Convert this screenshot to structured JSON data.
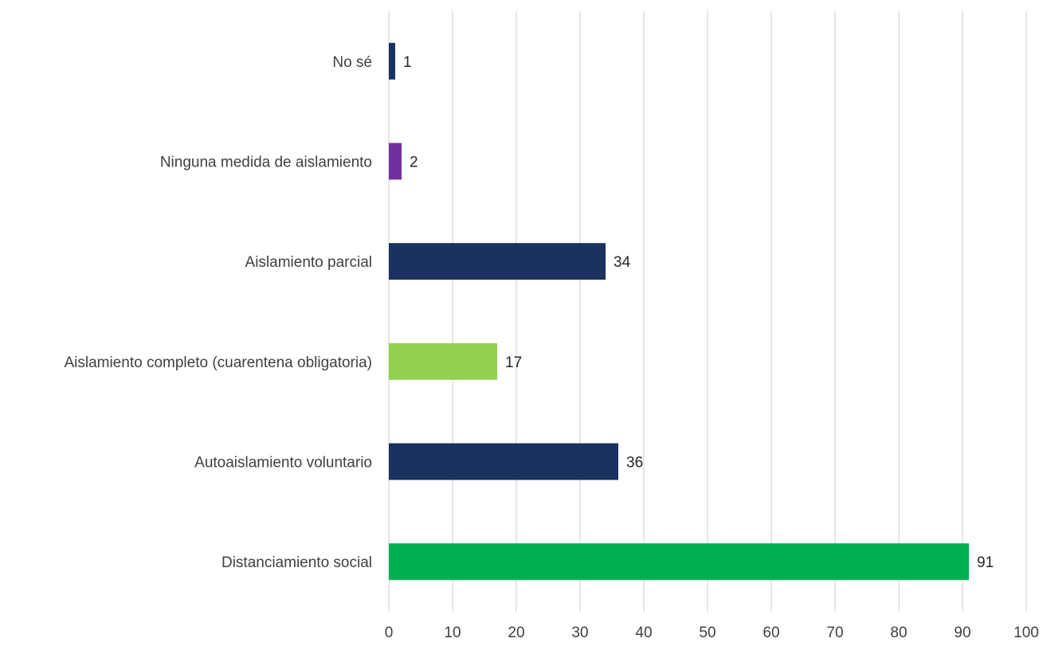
{
  "chart_data": {
    "type": "bar",
    "orientation": "horizontal",
    "categories": [
      "No sé",
      "Ninguna medida de aislamiento",
      "Aislamiento parcial",
      "Aislamiento completo (cuarentena obligatoria)",
      "Autoaislamiento voluntario",
      "Distanciamiento social"
    ],
    "values": [
      1,
      2,
      34,
      17,
      36,
      91
    ],
    "data_labels": [
      "1",
      "2",
      "34",
      "17",
      "36",
      "91"
    ],
    "bar_colors": [
      "#1b3160",
      "#7030a0",
      "#1b3160",
      "#92d050",
      "#1b3160",
      "#00b050"
    ],
    "xlim": [
      0,
      100
    ],
    "x_ticks": [
      0,
      10,
      20,
      30,
      40,
      50,
      60,
      70,
      80,
      90,
      100
    ],
    "x_tick_labels": [
      "0",
      "10",
      "20",
      "30",
      "40",
      "50",
      "60",
      "70",
      "80",
      "90",
      "100"
    ],
    "grid": "vertical",
    "legend": "none",
    "title": "",
    "xlabel": "",
    "ylabel": ""
  }
}
